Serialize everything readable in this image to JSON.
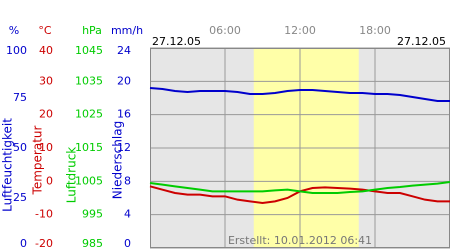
{
  "chart_data": {
    "type": "line",
    "date_left": "27.12.05",
    "date_right": "27.12.05",
    "footer": "Erstellt: 10.01.2012 06:41",
    "x": [
      0,
      1,
      2,
      3,
      4,
      5,
      6,
      7,
      8,
      9,
      10,
      11,
      12,
      13,
      14,
      15,
      16,
      17,
      18,
      19,
      20,
      21,
      22,
      23,
      24
    ],
    "xlim": [
      0,
      24
    ],
    "xticks": [
      {
        "value": 6,
        "label": "06:00"
      },
      {
        "value": 12,
        "label": "12:00"
      },
      {
        "value": 18,
        "label": "18:00"
      }
    ],
    "highlight": [
      8.3,
      16.7
    ],
    "grid": true,
    "axes": [
      {
        "unit": "%",
        "label": "Luftfeuchtigkeit",
        "color": "#0000cc",
        "ylim": [
          0,
          100
        ],
        "yticks": [
          100,
          75,
          50,
          25,
          0
        ],
        "values": [
          80,
          79.5,
          78.5,
          78,
          78.5,
          78.5,
          78.5,
          78,
          77,
          77,
          77.5,
          78.5,
          79,
          79,
          78.5,
          78,
          77.5,
          77.5,
          77,
          77,
          76.5,
          75.5,
          74.5,
          73.5,
          73.5
        ]
      },
      {
        "unit": "°C",
        "label": "Temperatur",
        "color": "#cc0000",
        "ylim": [
          -20,
          40
        ],
        "yticks": [
          40,
          30,
          20,
          10,
          0,
          -10,
          -20
        ],
        "values": [
          -1.5,
          -2.5,
          -3.5,
          -4,
          -4,
          -4.5,
          -4.5,
          -5.5,
          -6,
          -6.5,
          -6,
          -5,
          -3,
          -2,
          -1.8,
          -2,
          -2.2,
          -2.5,
          -3,
          -3.5,
          -3.5,
          -4.5,
          -5.5,
          -6,
          -6
        ]
      },
      {
        "unit": "hPa",
        "label": "Luftdruck",
        "color": "#00cc00",
        "ylim": [
          985,
          1045
        ],
        "yticks": [
          1045,
          1035,
          1025,
          1015,
          1005,
          995,
          985
        ],
        "values": [
          1004.5,
          1004,
          1003.5,
          1003,
          1002.5,
          1002,
          1002,
          1002,
          1002,
          1002,
          1002.3,
          1002.5,
          1002,
          1001.5,
          1001.5,
          1001.5,
          1001.8,
          1002,
          1002.5,
          1003,
          1003.3,
          1003.7,
          1004,
          1004.3,
          1004.8
        ]
      },
      {
        "unit": "mm/h",
        "label": "Niederschlag",
        "color": "#0000cc",
        "ylim": [
          0,
          24
        ],
        "yticks": [
          24,
          20,
          16,
          12,
          8,
          4,
          0
        ]
      }
    ]
  }
}
